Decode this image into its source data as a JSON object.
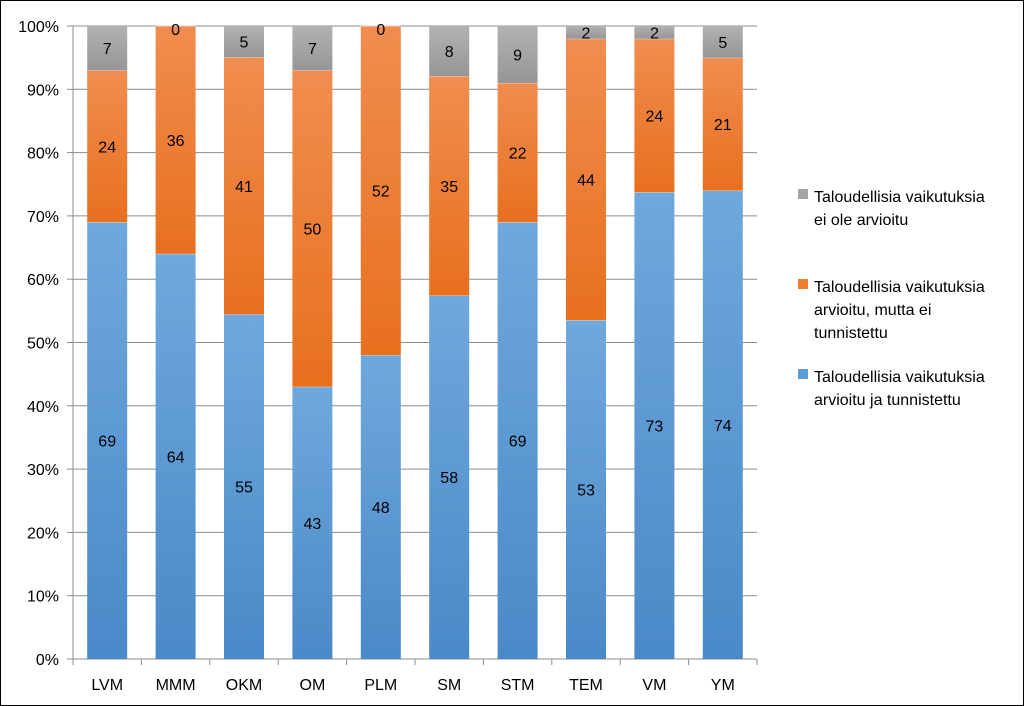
{
  "chart_data": {
    "type": "bar",
    "stacked": true,
    "percent": true,
    "categories": [
      "LVM",
      "MMM",
      "OKM",
      "OM",
      "PLM",
      "SM",
      "STM",
      "TEM",
      "VM",
      "YM"
    ],
    "series": [
      {
        "name": "Taloudellisia  vaikutuksia arvioitu ja tunnistettu",
        "legend_lines": [
          "Taloudellisia  vaikutuksia",
          "arvioitu ja tunnistettu"
        ],
        "color": "#5b9bd5",
        "values": [
          69,
          64,
          55,
          43,
          48,
          58,
          69,
          53,
          73,
          74
        ]
      },
      {
        "name": "Taloudellisia vaikutuksia arvioitu, mutta ei tunnistettu",
        "legend_lines": [
          "Taloudellisia vaikutuksia",
          "arvioitu, mutta ei",
          "tunnistettu"
        ],
        "color": "#ed7d31",
        "values": [
          24,
          36,
          41,
          50,
          52,
          35,
          22,
          44,
          24,
          21
        ]
      },
      {
        "name": "Taloudellisia vaikutuksia ei ole arvioitu",
        "legend_lines": [
          "Taloudellisia vaikutuksia",
          "ei ole arvioitu"
        ],
        "color": "#a5a5a5",
        "values": [
          7,
          0,
          5,
          7,
          0,
          8,
          9,
          2,
          2,
          5
        ]
      }
    ],
    "y_ticks": [
      "0%",
      "10%",
      "20%",
      "30%",
      "40%",
      "50%",
      "60%",
      "70%",
      "80%",
      "90%",
      "100%"
    ],
    "ylim": [
      0,
      100
    ],
    "grid": true,
    "legend_position": "right"
  }
}
